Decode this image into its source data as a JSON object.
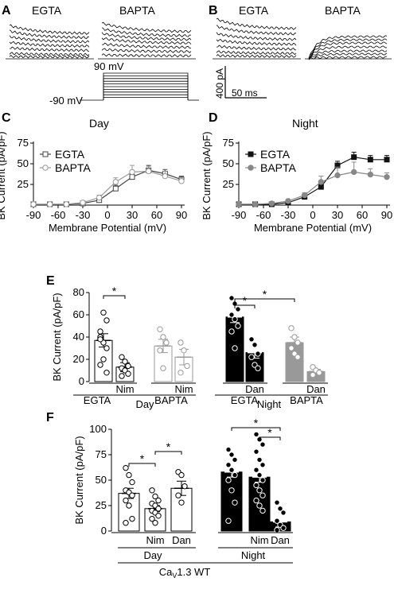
{
  "figure": {
    "panel_labels": [
      "A",
      "B",
      "C",
      "D",
      "E",
      "F"
    ],
    "traces": {
      "A": {
        "left_label": "EGTA",
        "right_label": "BAPTA"
      },
      "B": {
        "left_label": "EGTA",
        "right_label": "BAPTA"
      },
      "protocol": {
        "top_voltage": "90 mV",
        "hold_voltage": "-90 mV"
      },
      "scalebar": {
        "current": "400 pA",
        "time": "50 ms"
      }
    }
  },
  "chart_data": [
    {
      "id": "C",
      "type": "line",
      "title": "Day",
      "xlabel": "Membrane Potential (mV)",
      "ylabel": "BK Current (pA/pF)",
      "x": [
        -90,
        -70,
        -50,
        -30,
        -10,
        10,
        30,
        50,
        70,
        90
      ],
      "xticks": [
        "-90",
        "-60",
        "-30",
        "0",
        "30",
        "60",
        "90"
      ],
      "yticks": [
        "25",
        "50",
        "75"
      ],
      "xlim": [
        -90,
        90
      ],
      "ylim": [
        0,
        75
      ],
      "legend": "top-left",
      "series": [
        {
          "name": "EGTA",
          "marker": "open-square",
          "color": "#444444",
          "values": [
            1,
            1,
            1,
            2,
            6,
            20,
            34,
            42,
            38,
            31
          ],
          "err": [
            1,
            1,
            1,
            1,
            2,
            4,
            6,
            6,
            5,
            4
          ]
        },
        {
          "name": "BAPTA",
          "marker": "open-circle",
          "color": "#999999",
          "values": [
            1,
            1,
            1,
            3,
            9,
            28,
            40,
            41,
            35,
            29
          ],
          "err": [
            1,
            1,
            1,
            1,
            3,
            5,
            8,
            6,
            6,
            4
          ]
        }
      ]
    },
    {
      "id": "D",
      "type": "line",
      "title": "Night",
      "xlabel": "Membrane Potential (mV)",
      "ylabel": "BK Current (pA/pF)",
      "x": [
        -90,
        -70,
        -50,
        -30,
        -10,
        10,
        30,
        50,
        70,
        90
      ],
      "xticks": [
        "-90",
        "-60",
        "-30",
        "0",
        "30",
        "60",
        "90"
      ],
      "yticks": [
        "25",
        "50",
        "75"
      ],
      "xlim": [
        -90,
        90
      ],
      "ylim": [
        0,
        75
      ],
      "legend": "top-left",
      "series": [
        {
          "name": "EGTA",
          "marker": "filled-square",
          "color": "#111111",
          "values": [
            1,
            1,
            1,
            3,
            10,
            22,
            48,
            58,
            55,
            55
          ],
          "err": [
            1,
            1,
            1,
            1,
            2,
            4,
            5,
            6,
            5,
            5
          ]
        },
        {
          "name": "BAPTA",
          "marker": "filled-circle",
          "color": "#888888",
          "values": [
            1,
            1,
            2,
            5,
            12,
            28,
            36,
            40,
            37,
            34
          ],
          "err": [
            1,
            1,
            1,
            1,
            3,
            7,
            10,
            12,
            7,
            5
          ]
        }
      ]
    },
    {
      "id": "E",
      "type": "bar",
      "ylabel": "BK Current (pA/pF)",
      "yticks": [
        "0",
        "20",
        "40",
        "60",
        "80"
      ],
      "ylim": [
        0,
        80
      ],
      "group_labels": {
        "day": "Day",
        "night": "Night",
        "egta": "EGTA",
        "bapta": "BAPTA",
        "nim": "Nim",
        "dan": "Dan"
      },
      "bars": [
        {
          "mean": 37,
          "sem": 6,
          "fill": "#ffffff",
          "stroke": "#000000",
          "points": [
            45,
            62,
            55,
            40,
            35,
            30,
            38,
            20,
            8,
            15
          ]
        },
        {
          "mean": 13,
          "sem": 4,
          "fill": "#ffffff",
          "stroke": "#000000",
          "points": [
            22,
            18,
            14,
            12,
            10,
            7,
            5
          ]
        },
        {
          "mean": 32,
          "sem": 6,
          "fill": "#ffffff",
          "stroke": "#999999",
          "points": [
            47,
            40,
            35,
            28,
            12
          ]
        },
        {
          "mean": 22,
          "sem": 7,
          "fill": "#ffffff",
          "stroke": "#999999",
          "points": [
            35,
            28,
            14,
            8
          ]
        },
        {
          "mean": 58,
          "sem": 5,
          "fill": "#000000",
          "stroke": "#000000",
          "points": [
            75,
            70,
            65,
            60,
            56,
            50,
            45,
            30
          ]
        },
        {
          "mean": 26,
          "sem": 5,
          "fill": "#000000",
          "stroke": "#000000",
          "points": [
            38,
            33,
            25,
            22,
            15,
            12
          ]
        },
        {
          "mean": 35,
          "sem": 5,
          "fill": "#999999",
          "stroke": "#999999",
          "points": [
            48,
            40,
            35,
            30,
            25,
            22
          ]
        },
        {
          "mean": 9,
          "sem": 2,
          "fill": "#999999",
          "stroke": "#999999",
          "points": [
            13,
            10,
            8,
            6
          ]
        }
      ],
      "significance": [
        {
          "from": 0,
          "to": 1,
          "label": "*"
        },
        {
          "from": 4,
          "to": 5,
          "label": "*"
        },
        {
          "from": 4,
          "to": 6,
          "label": "*"
        }
      ]
    },
    {
      "id": "F",
      "type": "bar",
      "ylabel": "BK Current (pA/pF)",
      "yticks": [
        "0",
        "25",
        "50",
        "75",
        "100"
      ],
      "ylim": [
        0,
        100
      ],
      "group_labels": {
        "day": "Day",
        "night": "Night",
        "nim": "Nim",
        "dan": "Dan",
        "genotype_main": "Ca",
        "genotype_sub": "V",
        "genotype_rest": "1.3 WT"
      },
      "bars": [
        {
          "mean": 37,
          "sem": 5,
          "fill": "#ffffff",
          "stroke": "#000000",
          "points": [
            62,
            55,
            48,
            40,
            38,
            35,
            30,
            25,
            12,
            8
          ]
        },
        {
          "mean": 22,
          "sem": 3,
          "fill": "#ffffff",
          "stroke": "#000000",
          "points": [
            40,
            34,
            30,
            27,
            25,
            22,
            20,
            18,
            15,
            12,
            8
          ]
        },
        {
          "mean": 42,
          "sem": 7,
          "fill": "#ffffff",
          "stroke": "#000000",
          "points": [
            58,
            55,
            44,
            35,
            28
          ]
        },
        {
          "mean": 58,
          "sem": 5,
          "fill": "#000000",
          "stroke": "#000000",
          "points": [
            80,
            75,
            70,
            65,
            60,
            55,
            50,
            40,
            28,
            10
          ]
        },
        {
          "mean": 53,
          "sem": 5,
          "fill": "#000000",
          "stroke": "#000000",
          "points": [
            95,
            90,
            85,
            78,
            70,
            65,
            60,
            55,
            50,
            45,
            40,
            35,
            30,
            25,
            20
          ]
        },
        {
          "mean": 9,
          "sem": 5,
          "fill": "#000000",
          "stroke": "#000000",
          "points": [
            28,
            22,
            18,
            10,
            6,
            3,
            1
          ]
        }
      ],
      "significance": [
        {
          "from": 0,
          "to": 1,
          "label": "*"
        },
        {
          "from": 1,
          "to": 2,
          "label": "*"
        },
        {
          "from": 3,
          "to": 5,
          "label": "*"
        },
        {
          "from": 4,
          "to": 5,
          "label": "*"
        }
      ]
    }
  ]
}
